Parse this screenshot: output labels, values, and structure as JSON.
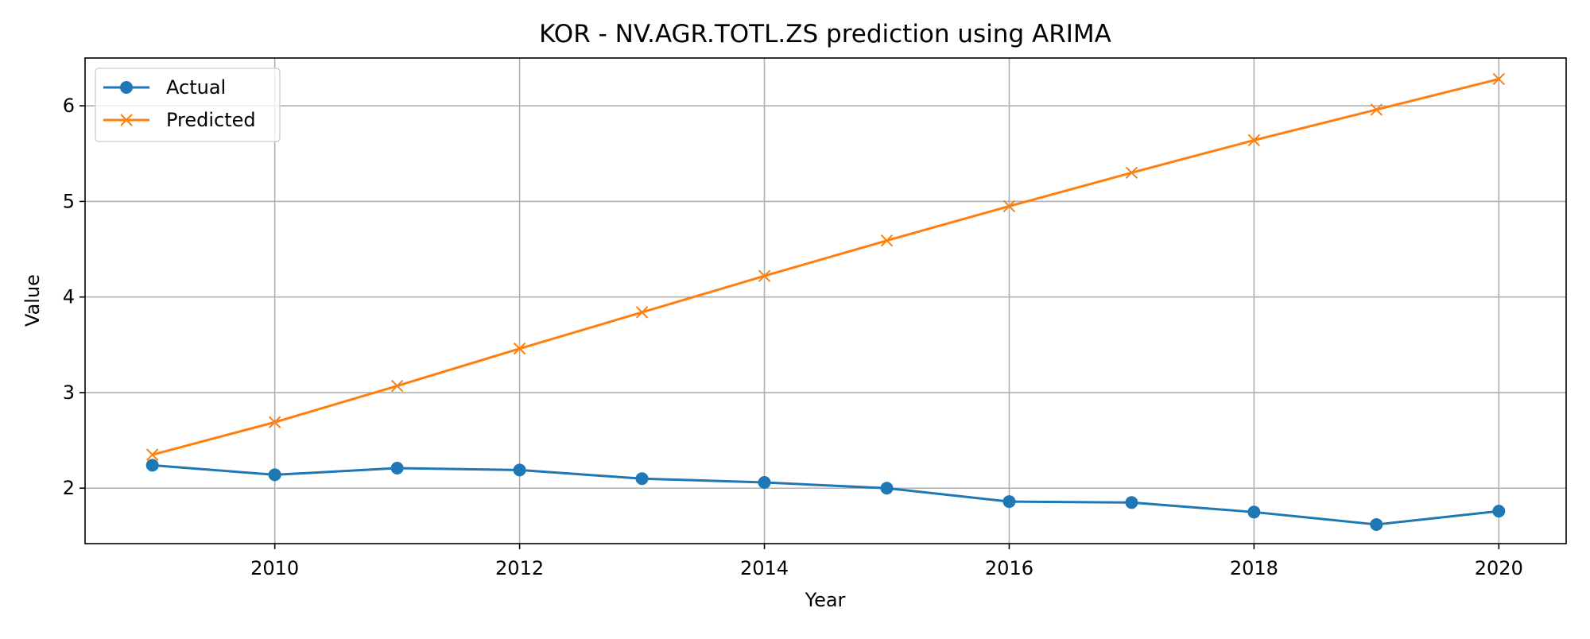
{
  "chart_data": {
    "type": "line",
    "title": "KOR - NV.AGR.TOTL.ZS prediction using ARIMA",
    "xlabel": "Year",
    "ylabel": "Value",
    "x": [
      2009,
      2010,
      2011,
      2012,
      2013,
      2014,
      2015,
      2016,
      2017,
      2018,
      2019,
      2020
    ],
    "xlim": [
      2008.45,
      2020.55
    ],
    "ylim": [
      1.42,
      6.5
    ],
    "xticks": [
      2010,
      2012,
      2014,
      2016,
      2018,
      2020
    ],
    "yticks": [
      2,
      3,
      4,
      5,
      6
    ],
    "grid": true,
    "legend_position": "upper left",
    "series": [
      {
        "name": "Actual",
        "color": "#1f77b4",
        "marker": "circle",
        "values": [
          2.24,
          2.14,
          2.21,
          2.19,
          2.1,
          2.06,
          2.0,
          1.86,
          1.85,
          1.75,
          1.62,
          1.76
        ]
      },
      {
        "name": "Predicted",
        "color": "#ff7f0e",
        "marker": "x",
        "values": [
          2.35,
          2.69,
          3.07,
          3.46,
          3.84,
          4.22,
          4.59,
          4.95,
          5.3,
          5.64,
          5.96,
          6.28
        ]
      }
    ]
  }
}
